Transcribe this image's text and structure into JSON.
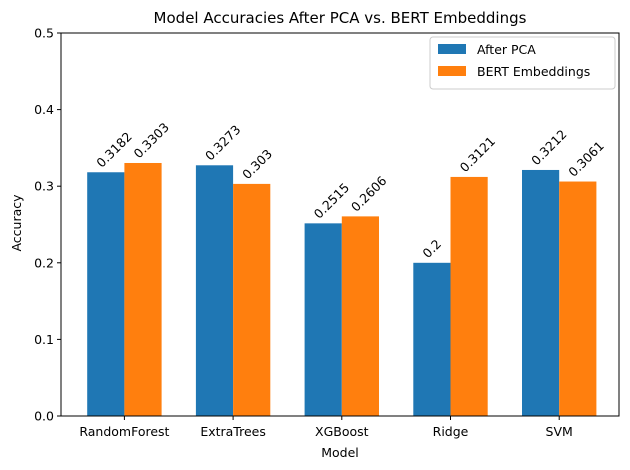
{
  "colors": {
    "series_a": "#1f77b4",
    "series_b": "#ff7f0e"
  },
  "chart_data": {
    "type": "bar",
    "title": "Model Accuracies After PCA vs. BERT Embeddings",
    "xlabel": "Model",
    "ylabel": "Accuracy",
    "categories": [
      "RandomForest",
      "ExtraTrees",
      "XGBoost",
      "Ridge",
      "SVM"
    ],
    "series": [
      {
        "name": "After PCA",
        "values": [
          0.3182,
          0.3273,
          0.2515,
          0.2,
          0.3212
        ],
        "labels": [
          "0.3182",
          "0.3273",
          "0.2515",
          "0.2",
          "0.3212"
        ]
      },
      {
        "name": "BERT Embeddings",
        "values": [
          0.3303,
          0.303,
          0.2606,
          0.3121,
          0.3061
        ],
        "labels": [
          "0.3303",
          "0.303",
          "0.2606",
          "0.3121",
          "0.3061"
        ]
      }
    ],
    "ylim": [
      0,
      0.5
    ],
    "yticks": [
      0.0,
      0.1,
      0.2,
      0.3,
      0.4,
      0.5
    ],
    "ytick_labels": [
      "0.0",
      "0.1",
      "0.2",
      "0.3",
      "0.4",
      "0.5"
    ],
    "grid": false,
    "legend_position": "top-right"
  }
}
